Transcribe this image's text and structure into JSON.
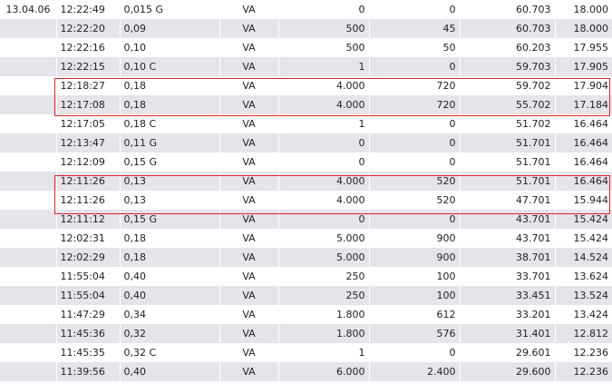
{
  "highlight_color": "#d9262c",
  "row_colors": {
    "even": "#ffffff",
    "odd": "#e6e3ea"
  },
  "rows": [
    {
      "date": "13.04.06",
      "time": "12:22:49",
      "price": "0,015 G",
      "type": "VA",
      "qty": "0",
      "value": "0",
      "col7": "60.703",
      "col8": "18.000"
    },
    {
      "date": "",
      "time": "12:22:20",
      "price": "0,09",
      "type": "VA",
      "qty": "500",
      "value": "45",
      "col7": "60.703",
      "col8": "18.000"
    },
    {
      "date": "",
      "time": "12:22:16",
      "price": "0,10",
      "type": "VA",
      "qty": "500",
      "value": "50",
      "col7": "60.203",
      "col8": "17.955"
    },
    {
      "date": "",
      "time": "12:22:15",
      "price": "0,10 C",
      "type": "VA",
      "qty": "1",
      "value": "0",
      "col7": "59.703",
      "col8": "17.905"
    },
    {
      "date": "",
      "time": "12:18:27",
      "price": "0,18",
      "type": "VA",
      "qty": "4.000",
      "value": "720",
      "col7": "59.702",
      "col8": "17.904"
    },
    {
      "date": "",
      "time": "12:17:08",
      "price": "0,18",
      "type": "VA",
      "qty": "4.000",
      "value": "720",
      "col7": "55.702",
      "col8": "17.184"
    },
    {
      "date": "",
      "time": "12:17:05",
      "price": "0,18 C",
      "type": "VA",
      "qty": "1",
      "value": "0",
      "col7": "51.702",
      "col8": "16.464"
    },
    {
      "date": "",
      "time": "12:13:47",
      "price": "0,11 G",
      "type": "VA",
      "qty": "0",
      "value": "0",
      "col7": "51.701",
      "col8": "16.464"
    },
    {
      "date": "",
      "time": "12:12:09",
      "price": "0,15 G",
      "type": "VA",
      "qty": "0",
      "value": "0",
      "col7": "51.701",
      "col8": "16.464"
    },
    {
      "date": "",
      "time": "12:11:26",
      "price": "0,13",
      "type": "VA",
      "qty": "4.000",
      "value": "520",
      "col7": "51.701",
      "col8": "16.464"
    },
    {
      "date": "",
      "time": "12:11:26",
      "price": "0,13",
      "type": "VA",
      "qty": "4.000",
      "value": "520",
      "col7": "47.701",
      "col8": "15.944"
    },
    {
      "date": "",
      "time": "12:11:12",
      "price": "0,15 G",
      "type": "VA",
      "qty": "0",
      "value": "0",
      "col7": "43.701",
      "col8": "15.424"
    },
    {
      "date": "",
      "time": "12:02:31",
      "price": "0,18",
      "type": "VA",
      "qty": "5.000",
      "value": "900",
      "col7": "43.701",
      "col8": "15.424"
    },
    {
      "date": "",
      "time": "12:02:29",
      "price": "0,18",
      "type": "VA",
      "qty": "5.000",
      "value": "900",
      "col7": "38.701",
      "col8": "14.524"
    },
    {
      "date": "",
      "time": "11:55:04",
      "price": "0,40",
      "type": "VA",
      "qty": "250",
      "value": "100",
      "col7": "33.701",
      "col8": "13.624"
    },
    {
      "date": "",
      "time": "11:55:04",
      "price": "0,40",
      "type": "VA",
      "qty": "250",
      "value": "100",
      "col7": "33.451",
      "col8": "13.524"
    },
    {
      "date": "",
      "time": "11:47:29",
      "price": "0,34",
      "type": "VA",
      "qty": "1.800",
      "value": "612",
      "col7": "33.201",
      "col8": "13.424"
    },
    {
      "date": "",
      "time": "11:45:36",
      "price": "0,32",
      "type": "VA",
      "qty": "1.800",
      "value": "576",
      "col7": "31.401",
      "col8": "12.812"
    },
    {
      "date": "",
      "time": "11:45:35",
      "price": "0,32 C",
      "type": "VA",
      "qty": "1",
      "value": "0",
      "col7": "29.601",
      "col8": "12.236"
    },
    {
      "date": "",
      "time": "11:39:56",
      "price": "0,40",
      "type": "VA",
      "qty": "6.000",
      "value": "2.400",
      "col7": "29.600",
      "col8": "12.236"
    }
  ]
}
